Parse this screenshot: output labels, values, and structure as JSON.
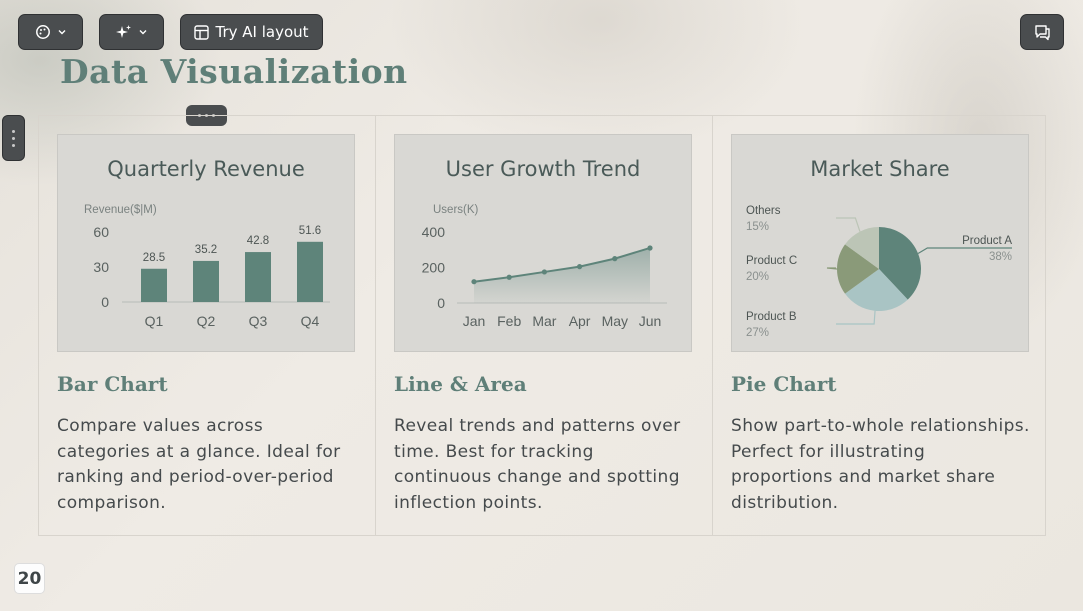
{
  "toolbar": {
    "ai_layout_label": "Try AI layout"
  },
  "slide": {
    "title": "Data Visualization",
    "page_number": "20"
  },
  "cards": [
    {
      "chart_title": "Quarterly Revenue",
      "title": "Bar Chart",
      "description": "Compare values across categories at a glance. Ideal for ranking and period-over-period comparison."
    },
    {
      "chart_title": "User Growth Trend",
      "title": "Line & Area",
      "description": "Reveal trends and patterns over time. Best for tracking continuous change and spotting inflection points."
    },
    {
      "chart_title": "Market Share",
      "title": "Pie Chart",
      "description": "Show part-to-whole relationships. Perfect for illustrating proportions and market share distribution."
    }
  ],
  "chart_data": [
    {
      "type": "bar",
      "title": "Quarterly Revenue",
      "ylabel": "Revenue($|M)",
      "categories": [
        "Q1",
        "Q2",
        "Q3",
        "Q4"
      ],
      "values": [
        28.5,
        35.2,
        42.8,
        51.6
      ],
      "data_labels": [
        "28.5",
        "35.2",
        "42.8",
        "51.6"
      ],
      "yticks": [
        "0",
        "30",
        "60"
      ],
      "ylim": [
        0,
        60
      ],
      "color": "#5e847a"
    },
    {
      "type": "area",
      "title": "User Growth Trend",
      "ylabel": "Users(K)",
      "categories": [
        "Jan",
        "Feb",
        "Mar",
        "Apr",
        "May",
        "Jun"
      ],
      "values": [
        120,
        145,
        175,
        205,
        250,
        310
      ],
      "yticks": [
        "0",
        "200",
        "400"
      ],
      "ylim": [
        0,
        400
      ],
      "color": "#5e847a"
    },
    {
      "type": "pie",
      "title": "Market Share",
      "slices": [
        {
          "label": "Product A",
          "pct_label": "38%",
          "value": 38,
          "color": "#5e847a"
        },
        {
          "label": "Product B",
          "pct_label": "27%",
          "value": 27,
          "color": "#a9c4c4"
        },
        {
          "label": "Product C",
          "pct_label": "20%",
          "value": 20,
          "color": "#8a9a79"
        },
        {
          "label": "Others",
          "pct_label": "15%",
          "value": 15,
          "color": "#bcc5b6"
        }
      ]
    }
  ]
}
